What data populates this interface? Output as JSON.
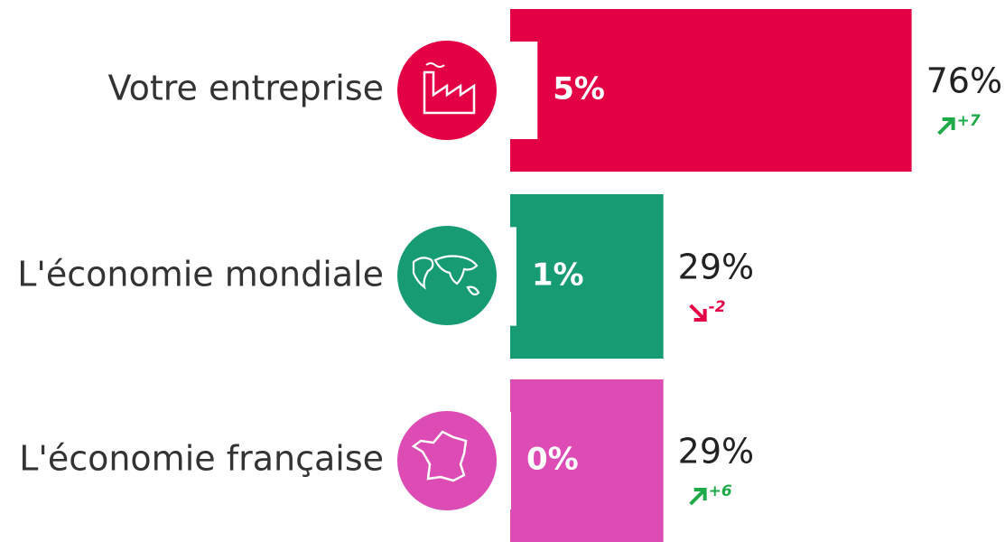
{
  "chart_data": {
    "type": "bar",
    "categories": [
      "Votre entreprise",
      "L'économie mondiale",
      "L'économie française"
    ],
    "values": [
      76,
      29,
      29
    ],
    "value_labels": [
      "76%",
      "29%",
      "29%"
    ],
    "inner_values": [
      5,
      1,
      0
    ],
    "inner_labels": [
      "5%",
      "1%",
      "0%"
    ],
    "changes": [
      7,
      -2,
      6
    ],
    "change_labels": [
      "+7",
      "-2",
      "+6"
    ],
    "colors": [
      "#e30044",
      "#179b73",
      "#dd4bb4"
    ],
    "up_color": "#1faa4a",
    "down_color": "#e30044",
    "xlim": [
      0,
      100
    ]
  }
}
